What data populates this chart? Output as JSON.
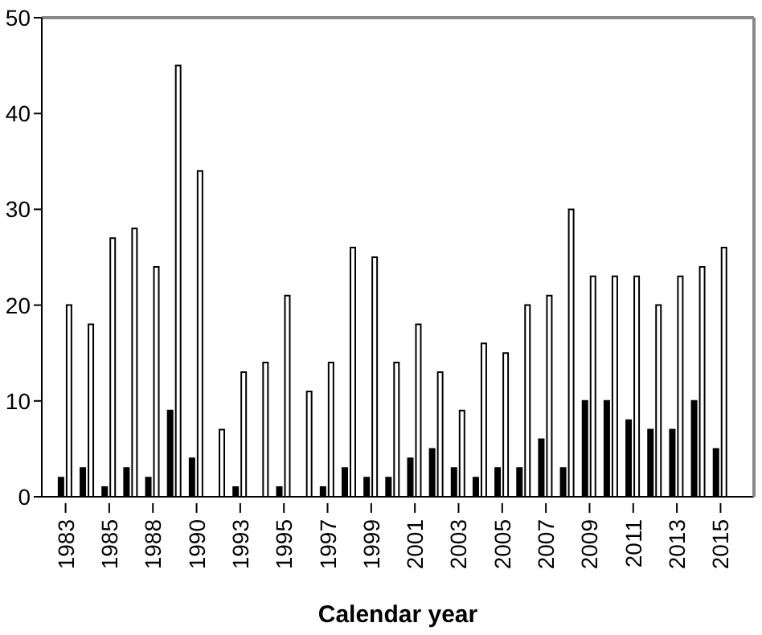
{
  "chart_data": {
    "type": "bar",
    "xlabel": "Calendar year",
    "categories": [
      "1983",
      null,
      "1985",
      null,
      "1988",
      null,
      "1990",
      null,
      "1993",
      null,
      "1995",
      null,
      "1997",
      null,
      "1999",
      null,
      "2001",
      null,
      "2003",
      null,
      "2005",
      null,
      "2007",
      null,
      "2009",
      null,
      "2011",
      null,
      "2013",
      null,
      "2015"
    ],
    "series": [
      {
        "color": "#000000",
        "values": [
          2,
          3,
          1,
          3,
          2,
          9,
          4,
          0,
          1,
          0,
          1,
          0,
          1,
          3,
          2,
          2,
          4,
          5,
          3,
          2,
          3,
          3,
          6,
          3,
          10,
          10,
          8,
          7,
          7,
          10,
          5
        ]
      },
      {
        "color": "#ffffff",
        "values": [
          20,
          18,
          27,
          28,
          24,
          45,
          34,
          7,
          13,
          14,
          21,
          11,
          14,
          26,
          25,
          14,
          18,
          13,
          9,
          16,
          15,
          20,
          21,
          30,
          23,
          23,
          23,
          20,
          23,
          24,
          26
        ]
      }
    ],
    "ylim": [
      0,
      50
    ],
    "yticks": [
      0,
      10,
      20,
      30,
      40,
      50
    ],
    "grid": false,
    "legend": false
  }
}
